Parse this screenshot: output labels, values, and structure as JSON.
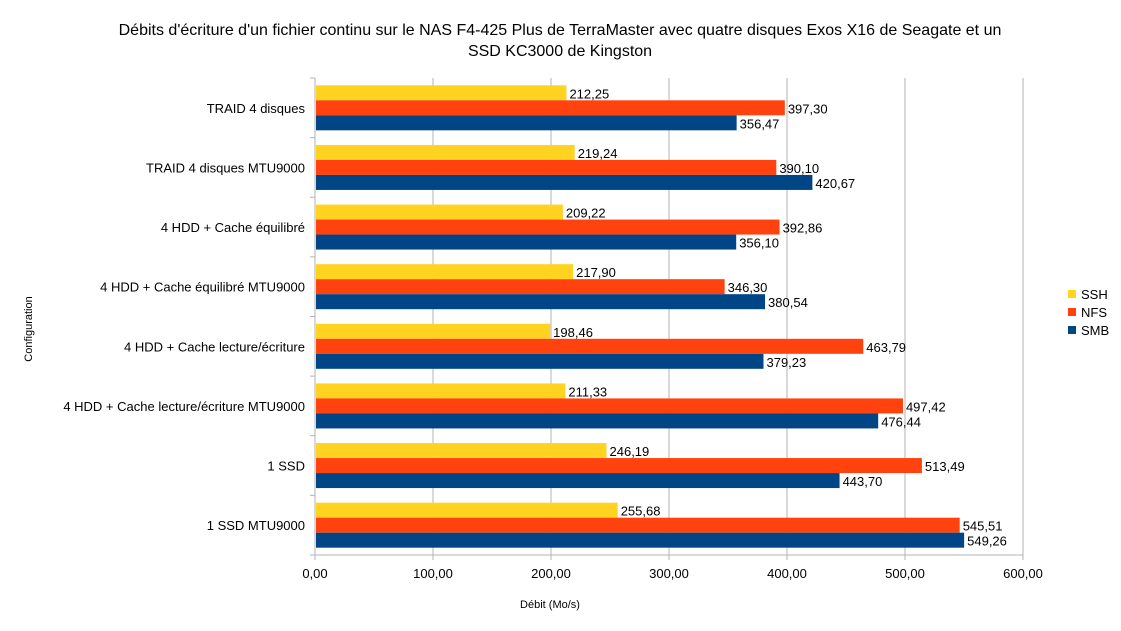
{
  "chart_data": {
    "type": "bar",
    "orientation": "horizontal",
    "title": "Débits d'écriture d'un fichier continu sur le NAS F4-425 Plus de TerraMaster avec quatre disques Exos X16 de Seagate et un SSD KC3000 de Kingston",
    "xlabel": "Débit (Mo/s)",
    "ylabel": "Configuration",
    "xlim": [
      0,
      600
    ],
    "x_ticks": [
      0,
      100,
      200,
      300,
      400,
      500,
      600
    ],
    "x_tick_labels": [
      "0,00",
      "100,00",
      "200,00",
      "300,00",
      "400,00",
      "500,00",
      "600,00"
    ],
    "grid": "vertical",
    "legend_position": "right",
    "categories": [
      "TRAID 4 disques",
      "TRAID 4 disques MTU9000",
      "4 HDD + Cache équilibré",
      "4 HDD + Cache équilibré MTU9000",
      "4 HDD + Cache lecture/écriture",
      "4 HDD + Cache lecture/écriture  MTU9000",
      "1 SSD",
      "1 SSD MTU9000"
    ],
    "series": [
      {
        "name": "SSH",
        "color": "#ffd320",
        "values": [
          212.25,
          219.24,
          209.22,
          217.9,
          198.46,
          211.33,
          246.19,
          255.68
        ],
        "labels": [
          "212,25",
          "219,24",
          "209,22",
          "217,90",
          "198,46",
          "211,33",
          "246,19",
          "255,68"
        ]
      },
      {
        "name": "NFS",
        "color": "#ff420e",
        "values": [
          397.3,
          390.1,
          392.86,
          346.3,
          463.79,
          497.42,
          513.49,
          545.51
        ],
        "labels": [
          "397,30",
          "390,10",
          "392,86",
          "346,30",
          "463,79",
          "497,42",
          "513,49",
          "545,51"
        ]
      },
      {
        "name": "SMB",
        "color": "#004586",
        "values": [
          356.47,
          420.67,
          356.1,
          380.54,
          379.23,
          476.44,
          443.7,
          549.26
        ],
        "labels": [
          "356,47",
          "420,67",
          "356,10",
          "380,54",
          "379,23",
          "476,44",
          "443,70",
          "549,26"
        ]
      }
    ]
  }
}
